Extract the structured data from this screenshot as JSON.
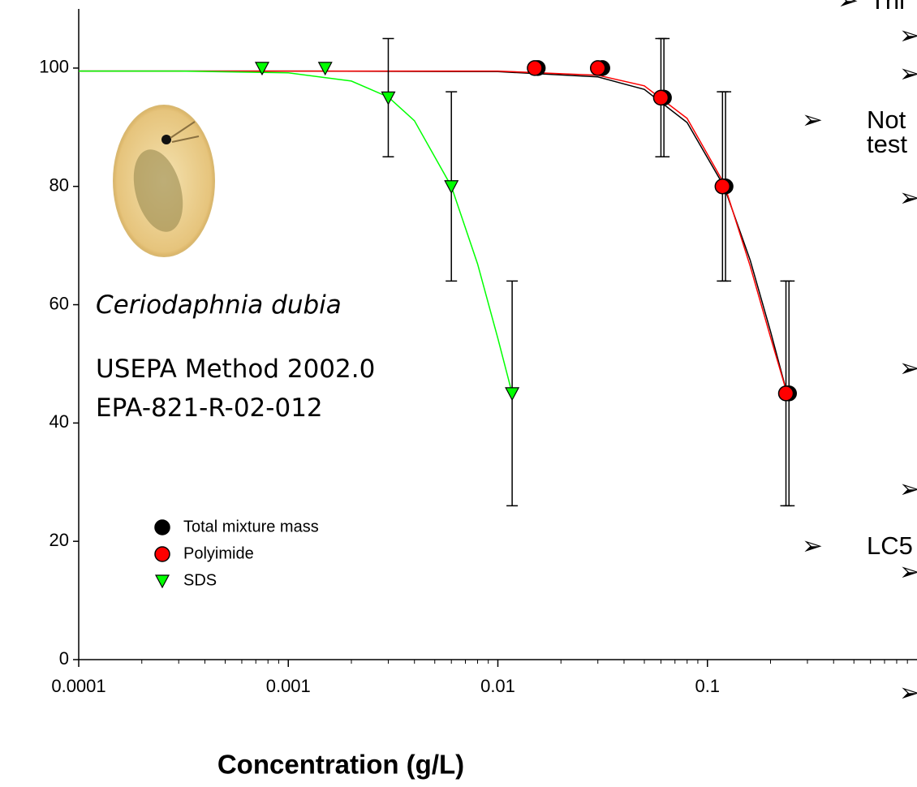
{
  "chart_data": {
    "type": "scatter",
    "x_label": "Concentration (g/L)",
    "xscale": "log",
    "xlim": [
      0.0001,
      1
    ],
    "xticks": [
      0.0001,
      0.001,
      0.01,
      0.1
    ],
    "xticks_minor": [
      0.0002,
      0.0003,
      0.0004,
      0.0005,
      0.0006,
      0.0007,
      0.0008,
      0.0009,
      0.002,
      0.003,
      0.004,
      0.005,
      0.006,
      0.007,
      0.008,
      0.009,
      0.02,
      0.03,
      0.04,
      0.05,
      0.06,
      0.07,
      0.08,
      0.09,
      0.2,
      0.3,
      0.4,
      0.5,
      0.6,
      0.7,
      0.8,
      0.9
    ],
    "ylim": [
      0,
      110
    ],
    "yticks": [
      0,
      20,
      40,
      60,
      80,
      100
    ],
    "legend": "lower left",
    "series": [
      {
        "name": "Total mixture mass",
        "color": "#000000",
        "marker": "circle",
        "x": [
          0.0155,
          0.0315,
          0.062,
          0.122,
          0.245
        ],
        "values": [
          100,
          100,
          95,
          80,
          45
        ],
        "errors": [
          null,
          null,
          10,
          16,
          19
        ]
      },
      {
        "name": "Polyimide",
        "color": "#ff0000",
        "marker": "circle",
        "x": [
          0.015,
          0.03,
          0.06,
          0.118,
          0.237
        ],
        "values": [
          100,
          100,
          95,
          80,
          45
        ],
        "errors": [
          null,
          null,
          10,
          16,
          19
        ]
      },
      {
        "name": "SDS",
        "color": "#00ff00",
        "marker": "triangle-down",
        "x": [
          0.00075,
          0.0015,
          0.003,
          0.006,
          0.0117
        ],
        "values": [
          100,
          100,
          95,
          80,
          45
        ],
        "errors": [
          null,
          null,
          10,
          16,
          19
        ]
      }
    ],
    "curves": [
      {
        "color": "#000000",
        "x": [
          0.0001,
          0.001,
          0.01,
          0.03,
          0.05,
          0.08,
          0.12,
          0.16,
          0.2,
          0.24
        ],
        "values": [
          99.5,
          99.5,
          99.4,
          98.5,
          96.4,
          90.8,
          80.0,
          67.5,
          55.5,
          45.0
        ]
      },
      {
        "color": "#ff0000",
        "x": [
          0.0001,
          0.001,
          0.01,
          0.03,
          0.05,
          0.08,
          0.12,
          0.16,
          0.2,
          0.24
        ],
        "values": [
          99.5,
          99.5,
          99.5,
          98.8,
          97.0,
          91.5,
          80.5,
          66.5,
          54.5,
          45.0
        ]
      },
      {
        "color": "#00ff00",
        "x": [
          0.0001,
          0.0003,
          0.001,
          0.002,
          0.003,
          0.004,
          0.006,
          0.008,
          0.01,
          0.0117
        ],
        "values": [
          99.5,
          99.5,
          99.2,
          97.8,
          95.1,
          91.1,
          80.0,
          66.9,
          54.3,
          45.0
        ]
      }
    ],
    "annotations": [
      "Ceriodaphnia dubia",
      "USEPA Method 2002.0",
      "EPA-821-R-02-012"
    ]
  },
  "side_text": [
    {
      "bullet": "➢",
      "text": "Thi"
    },
    {
      "bullet": "➢"
    },
    {
      "bullet": "➢"
    },
    {
      "bullet": "➢",
      "text": "Not"
    },
    {
      "text": "test"
    },
    {
      "bullet": "➢"
    },
    {
      "bullet": "➢"
    },
    {
      "bullet": "➢"
    },
    {
      "bullet": "➢",
      "text": "LC5"
    },
    {
      "bullet": "➢"
    },
    {
      "bullet": "➢"
    }
  ]
}
